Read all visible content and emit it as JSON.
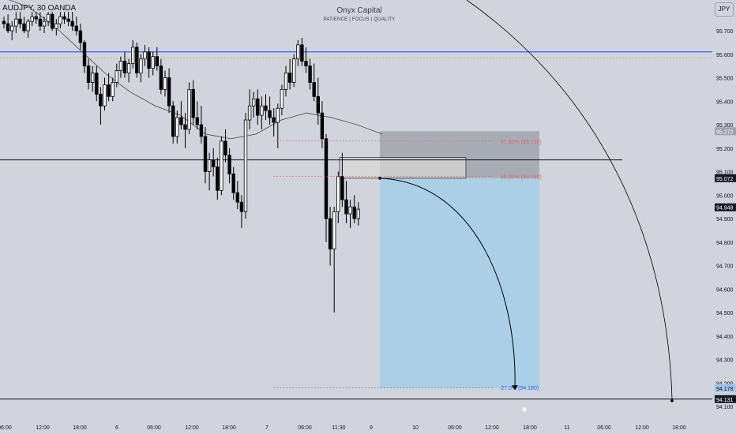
{
  "symbol": {
    "title": "AUDJPY, 30 OANDA",
    "currency": "JPY"
  },
  "watermark": {
    "name": "Onyx Capital",
    "tagline": "PATIENCE  |  FOCUS  |  QUALITY"
  },
  "colors": {
    "background": "#d1d4dc",
    "candle": "#000000",
    "moving_average": "#555555",
    "resistance_line": "#2962ff",
    "support_line": "#000000",
    "fib_line": "#e06666",
    "stop_zone": "#a3a7b0",
    "target_zone": "#a8cfe6",
    "arc": "#000000"
  },
  "price_axis": {
    "ticks": [
      "95.700",
      "95.600",
      "95.500",
      "95.400",
      "95.300",
      "95.200",
      "95.100",
      "95.000",
      "94.900",
      "94.800",
      "94.700",
      "94.600",
      "94.500",
      "94.400",
      "94.300",
      "94.200",
      "94.100"
    ],
    "tags": [
      {
        "label": "95.272",
        "style": "gray"
      },
      {
        "label": "95.072",
        "style": "dark"
      },
      {
        "label": "94.948",
        "style": "dark"
      },
      {
        "label": "94.178",
        "style": "blue"
      },
      {
        "label": "94.131",
        "style": "dark"
      }
    ]
  },
  "time_axis": {
    "ticks": [
      "06:00",
      "12:00",
      "18:00",
      "6",
      "06:00",
      "12:00",
      "18:00",
      "7",
      "06:00",
      "11:30",
      "9",
      "10",
      "06:00",
      "12:00",
      "18:00",
      "11",
      "06:00",
      "12:00",
      "18:00"
    ]
  },
  "fib_levels": [
    {
      "label": "61.80% (95.230)"
    },
    {
      "label": "50.00% (95.080)"
    },
    {
      "label": "-27.0% (94.180)"
    }
  ],
  "chart_data": {
    "type": "candlestick",
    "title": "AUDJPY, 30 OANDA",
    "ylim": [
      94.1,
      95.78
    ],
    "x_ticks": [
      "06:00",
      "12:00",
      "18:00",
      "6",
      "06:00",
      "12:00",
      "18:00",
      "7",
      "06:00",
      "11:30",
      "9",
      "10",
      "06:00",
      "12:00",
      "18:00",
      "11",
      "06:00",
      "12:00",
      "18:00"
    ],
    "candles": [
      [
        95.74,
        95.76,
        95.71,
        95.73
      ],
      [
        95.73,
        95.77,
        95.69,
        95.7
      ],
      [
        95.7,
        95.74,
        95.66,
        95.72
      ],
      [
        95.72,
        95.78,
        95.69,
        95.75
      ],
      [
        95.75,
        95.78,
        95.71,
        95.73
      ],
      [
        95.73,
        95.76,
        95.69,
        95.7
      ],
      [
        95.7,
        95.75,
        95.67,
        95.74
      ],
      [
        95.74,
        95.78,
        95.72,
        95.76
      ],
      [
        95.76,
        95.78,
        95.73,
        95.75
      ],
      [
        95.75,
        95.78,
        95.7,
        95.72
      ],
      [
        95.72,
        95.76,
        95.69,
        95.74
      ],
      [
        95.74,
        95.78,
        95.72,
        95.77
      ],
      [
        95.77,
        95.78,
        95.7,
        95.71
      ],
      [
        95.71,
        95.75,
        95.68,
        95.73
      ],
      [
        95.73,
        95.78,
        95.71,
        95.76
      ],
      [
        95.76,
        95.78,
        95.73,
        95.75
      ],
      [
        95.75,
        95.78,
        95.72,
        95.74
      ],
      [
        95.74,
        95.78,
        95.7,
        95.72
      ],
      [
        95.72,
        95.76,
        95.68,
        95.7
      ],
      [
        95.7,
        95.73,
        95.62,
        95.65
      ],
      [
        95.65,
        95.66,
        95.52,
        95.55
      ],
      [
        95.55,
        95.58,
        95.45,
        95.48
      ],
      [
        95.48,
        95.55,
        95.44,
        95.52
      ],
      [
        95.52,
        95.55,
        95.4,
        95.43
      ],
      [
        95.43,
        95.46,
        95.3,
        95.38
      ],
      [
        95.38,
        95.5,
        95.36,
        95.47
      ],
      [
        95.47,
        95.52,
        95.4,
        95.42
      ],
      [
        95.42,
        95.5,
        95.4,
        95.48
      ],
      [
        95.48,
        95.56,
        95.46,
        95.53
      ],
      [
        95.53,
        95.59,
        95.5,
        95.57
      ],
      [
        95.57,
        95.61,
        95.5,
        95.52
      ],
      [
        95.52,
        95.58,
        95.48,
        95.56
      ],
      [
        95.56,
        95.66,
        95.54,
        95.63
      ],
      [
        95.63,
        95.65,
        95.5,
        95.52
      ],
      [
        95.52,
        95.6,
        95.48,
        95.58
      ],
      [
        95.58,
        95.64,
        95.55,
        95.61
      ],
      [
        95.61,
        95.63,
        95.5,
        95.54
      ],
      [
        95.54,
        95.61,
        95.51,
        95.59
      ],
      [
        95.59,
        95.63,
        95.53,
        95.55
      ],
      [
        95.55,
        95.58,
        95.43,
        95.45
      ],
      [
        95.45,
        95.53,
        95.42,
        95.5
      ],
      [
        95.5,
        95.54,
        95.35,
        95.38
      ],
      [
        95.38,
        95.4,
        95.22,
        95.25
      ],
      [
        95.25,
        95.36,
        95.22,
        95.33
      ],
      [
        95.33,
        95.4,
        95.28,
        95.3
      ],
      [
        95.3,
        95.35,
        95.2,
        95.28
      ],
      [
        95.28,
        95.48,
        95.26,
        95.45
      ],
      [
        95.45,
        95.49,
        95.3,
        95.33
      ],
      [
        95.33,
        95.4,
        95.28,
        95.3
      ],
      [
        95.3,
        95.38,
        95.22,
        95.25
      ],
      [
        95.25,
        95.29,
        95.05,
        95.1
      ],
      [
        95.1,
        95.18,
        95.02,
        95.15
      ],
      [
        95.15,
        95.2,
        95.08,
        95.12
      ],
      [
        95.12,
        95.16,
        94.98,
        95.02
      ],
      [
        95.02,
        95.25,
        95.0,
        95.23
      ],
      [
        95.23,
        95.28,
        95.14,
        95.17
      ],
      [
        95.17,
        95.2,
        95.05,
        95.09
      ],
      [
        95.09,
        95.12,
        94.98,
        95.01
      ],
      [
        95.01,
        95.06,
        94.94,
        94.97
      ],
      [
        94.97,
        95.0,
        94.86,
        94.93
      ],
      [
        94.93,
        95.35,
        94.9,
        95.32
      ],
      [
        95.32,
        95.45,
        95.28,
        95.38
      ],
      [
        95.38,
        95.44,
        95.33,
        95.41
      ],
      [
        95.41,
        95.45,
        95.3,
        95.34
      ],
      [
        95.34,
        95.42,
        95.28,
        95.38
      ],
      [
        95.38,
        95.43,
        95.32,
        95.36
      ],
      [
        95.36,
        95.42,
        95.3,
        95.33
      ],
      [
        95.33,
        95.37,
        95.25,
        95.31
      ],
      [
        95.31,
        95.39,
        95.2,
        95.37
      ],
      [
        95.37,
        95.47,
        95.34,
        95.45
      ],
      [
        95.45,
        95.55,
        95.42,
        95.52
      ],
      [
        95.52,
        95.58,
        95.45,
        95.48
      ],
      [
        95.48,
        95.6,
        95.46,
        95.58
      ],
      [
        95.58,
        95.66,
        95.55,
        95.64
      ],
      [
        95.64,
        95.67,
        95.55,
        95.57
      ],
      [
        95.57,
        95.63,
        95.52,
        95.55
      ],
      [
        95.55,
        95.58,
        95.45,
        95.48
      ],
      [
        95.48,
        95.56,
        95.4,
        95.42
      ],
      [
        95.42,
        95.5,
        95.3,
        95.35
      ],
      [
        95.35,
        95.4,
        95.2,
        95.24
      ],
      [
        95.24,
        95.26,
        94.8,
        94.9
      ],
      [
        94.9,
        94.95,
        94.7,
        94.77
      ],
      [
        94.77,
        94.95,
        94.5,
        94.93
      ],
      [
        94.93,
        95.1,
        94.88,
        95.08
      ],
      [
        95.08,
        95.18,
        94.95,
        94.98
      ],
      [
        94.98,
        95.06,
        94.88,
        94.92
      ],
      [
        94.92,
        94.98,
        94.86,
        94.95
      ],
      [
        94.95,
        95.0,
        94.88,
        94.9
      ],
      [
        94.9,
        94.97,
        94.87,
        94.94
      ]
    ],
    "moving_average": [
      [
        0,
        95.84
      ],
      [
        20,
        95.8
      ],
      [
        40,
        95.72
      ],
      [
        60,
        95.62
      ],
      [
        80,
        95.52
      ],
      [
        100,
        95.44
      ],
      [
        120,
        95.38
      ],
      [
        140,
        95.34
      ],
      [
        160,
        95.26
      ],
      [
        180,
        95.24
      ],
      [
        200,
        95.26
      ],
      [
        220,
        95.32
      ],
      [
        240,
        95.35
      ],
      [
        260,
        95.33
      ],
      [
        280,
        95.3
      ],
      [
        300,
        95.26
      ]
    ],
    "horizontal_lines": [
      {
        "price": 95.61,
        "color": "blue"
      },
      {
        "price": 95.585,
        "color": "orange"
      },
      {
        "price": 95.15,
        "color": "black"
      },
      {
        "price": 94.131,
        "color": "black"
      }
    ],
    "position": {
      "entry": 95.072,
      "stop_top": 95.272,
      "target": 94.178
    }
  }
}
